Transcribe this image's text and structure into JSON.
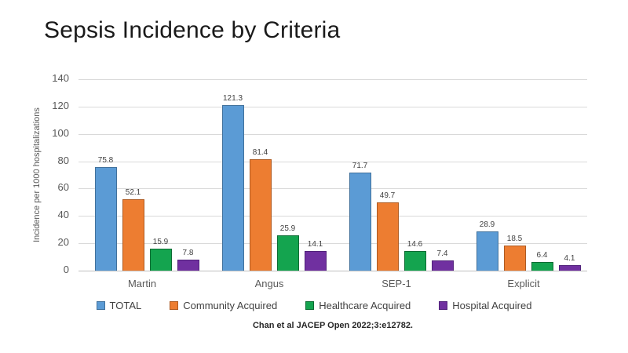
{
  "slide": {
    "title": "Sepsis Incidence by Criteria",
    "citation": "Chan et al JACEP Open 2022;3:e12782."
  },
  "chart_data": {
    "type": "bar",
    "title": "Sepsis Incidence by Criteria",
    "xlabel": "",
    "ylabel": "Incidence per 1000 hospitalizations",
    "ylim": [
      0,
      140
    ],
    "yticks": [
      0,
      20,
      40,
      60,
      80,
      100,
      120,
      140
    ],
    "grid": true,
    "legend_position": "bottom",
    "categories": [
      "Martin",
      "Angus",
      "SEP-1",
      "Explicit"
    ],
    "series": [
      {
        "name": "TOTAL",
        "fill": "#5B9BD5",
        "border": "#41719C",
        "values": [
          75.8,
          121.3,
          71.7,
          28.9
        ]
      },
      {
        "name": "Community Acquired",
        "fill": "#ED7D31",
        "border": "#AE5A21",
        "values": [
          52.1,
          81.4,
          49.7,
          18.5
        ]
      },
      {
        "name": "Healthcare Acquired",
        "fill": "#14A44F",
        "border": "#0D6B33",
        "values": [
          15.9,
          25.9,
          14.6,
          6.4
        ]
      },
      {
        "name": "Hospital Acquired",
        "fill": "#7030A0",
        "border": "#50217A",
        "values": [
          7.8,
          14.1,
          7.4,
          4.1
        ]
      }
    ],
    "colors": {
      "grid_line": "#D9D9D9",
      "axis_line": "#BFBFBF",
      "tick_label": "#595959",
      "value_label": "#404040",
      "legend_label": "#404040"
    }
  }
}
